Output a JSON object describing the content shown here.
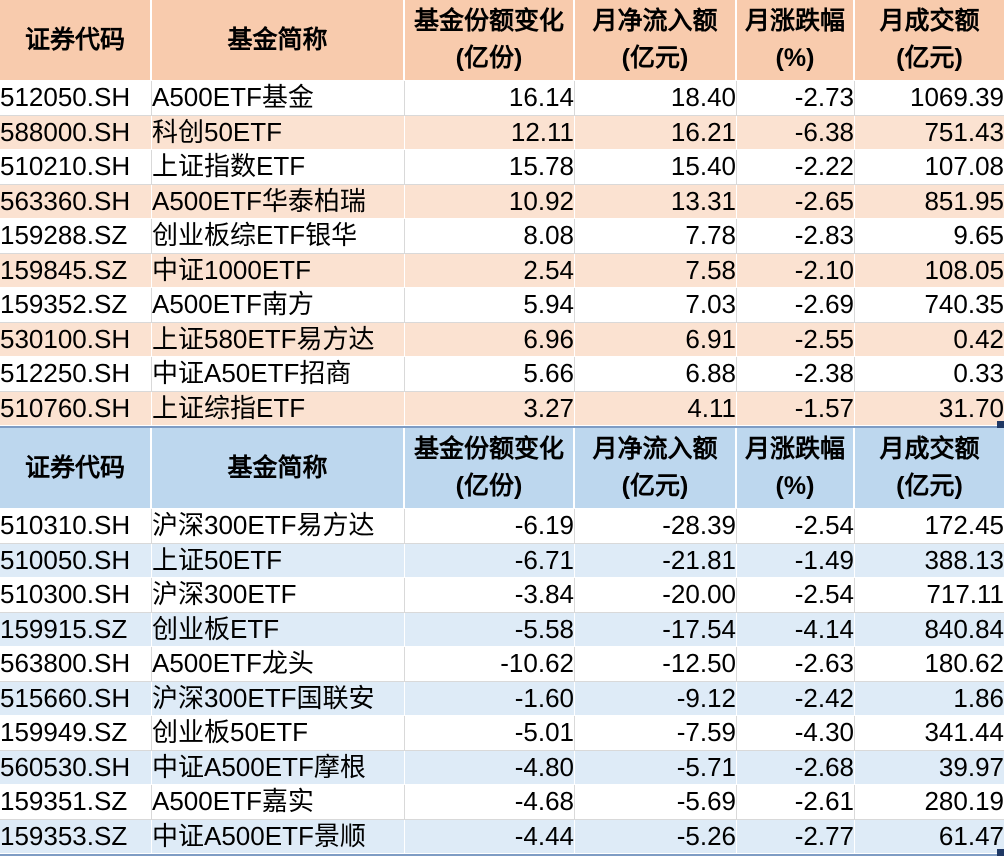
{
  "colors": {
    "table1_header_bg": "#F8CBAD",
    "table1_alt_row_bg": "#FBE2D1",
    "table2_header_bg": "#BDD7EE",
    "table2_alt_row_bg": "#DEEBF7",
    "grid_line": "#D9D9D9",
    "selection_border": "#7E9CC4",
    "fill_handle": "#1F3864",
    "text": "#000000"
  },
  "chart_data": [
    {
      "type": "table",
      "columns": [
        {
          "label": "证券代码",
          "unit": ""
        },
        {
          "label": "基金简称",
          "unit": ""
        },
        {
          "label": "基金份额变化",
          "unit": "(亿份)"
        },
        {
          "label": "月净流入额",
          "unit": "(亿元)"
        },
        {
          "label": "月涨跌幅",
          "unit": "(%)"
        },
        {
          "label": "月成交额",
          "unit": "(亿元)"
        }
      ],
      "rows": [
        [
          "512050.SH",
          "A500ETF基金",
          "16.14",
          "18.40",
          "-2.73",
          "1069.39"
        ],
        [
          "588000.SH",
          "科创50ETF",
          "12.11",
          "16.21",
          "-6.38",
          "751.43"
        ],
        [
          "510210.SH",
          "上证指数ETF",
          "15.78",
          "15.40",
          "-2.22",
          "107.08"
        ],
        [
          "563360.SH",
          "A500ETF华泰柏瑞",
          "10.92",
          "13.31",
          "-2.65",
          "851.95"
        ],
        [
          "159288.SZ",
          "创业板综ETF银华",
          "8.08",
          "7.78",
          "-2.83",
          "9.65"
        ],
        [
          "159845.SZ",
          "中证1000ETF",
          "2.54",
          "7.58",
          "-2.10",
          "108.05"
        ],
        [
          "159352.SZ",
          "A500ETF南方",
          "5.94",
          "7.03",
          "-2.69",
          "740.35"
        ],
        [
          "530100.SH",
          "上证580ETF易方达",
          "6.96",
          "6.91",
          "-2.55",
          "0.42"
        ],
        [
          "512250.SH",
          "中证A50ETF招商",
          "5.66",
          "6.88",
          "-2.38",
          "0.33"
        ],
        [
          "510760.SH",
          "上证综指ETF",
          "3.27",
          "4.11",
          "-1.57",
          "31.70"
        ]
      ]
    },
    {
      "type": "table",
      "columns": [
        {
          "label": "证券代码",
          "unit": ""
        },
        {
          "label": "基金简称",
          "unit": ""
        },
        {
          "label": "基金份额变化",
          "unit": "(亿份)"
        },
        {
          "label": "月净流入额",
          "unit": "(亿元)"
        },
        {
          "label": "月涨跌幅",
          "unit": "(%)"
        },
        {
          "label": "月成交额",
          "unit": "(亿元)"
        }
      ],
      "rows": [
        [
          "510310.SH",
          "沪深300ETF易方达",
          "-6.19",
          "-28.39",
          "-2.54",
          "172.45"
        ],
        [
          "510050.SH",
          "上证50ETF",
          "-6.71",
          "-21.81",
          "-1.49",
          "388.13"
        ],
        [
          "510300.SH",
          "沪深300ETF",
          "-3.84",
          "-20.00",
          "-2.54",
          "717.11"
        ],
        [
          "159915.SZ",
          "创业板ETF",
          "-5.58",
          "-17.54",
          "-4.14",
          "840.84"
        ],
        [
          "563800.SH",
          "A500ETF龙头",
          "-10.62",
          "-12.50",
          "-2.63",
          "180.62"
        ],
        [
          "515660.SH",
          "沪深300ETF国联安",
          "-1.60",
          "-9.12",
          "-2.42",
          "1.86"
        ],
        [
          "159949.SZ",
          "创业板50ETF",
          "-5.01",
          "-7.59",
          "-4.30",
          "341.44"
        ],
        [
          "560530.SH",
          "中证A500ETF摩根",
          "-4.80",
          "-5.71",
          "-2.68",
          "39.97"
        ],
        [
          "159351.SZ",
          "A500ETF嘉实",
          "-4.68",
          "-5.69",
          "-2.61",
          "280.19"
        ],
        [
          "159353.SZ",
          "中证A500ETF景顺",
          "-4.44",
          "-5.26",
          "-2.77",
          "61.47"
        ]
      ]
    }
  ]
}
